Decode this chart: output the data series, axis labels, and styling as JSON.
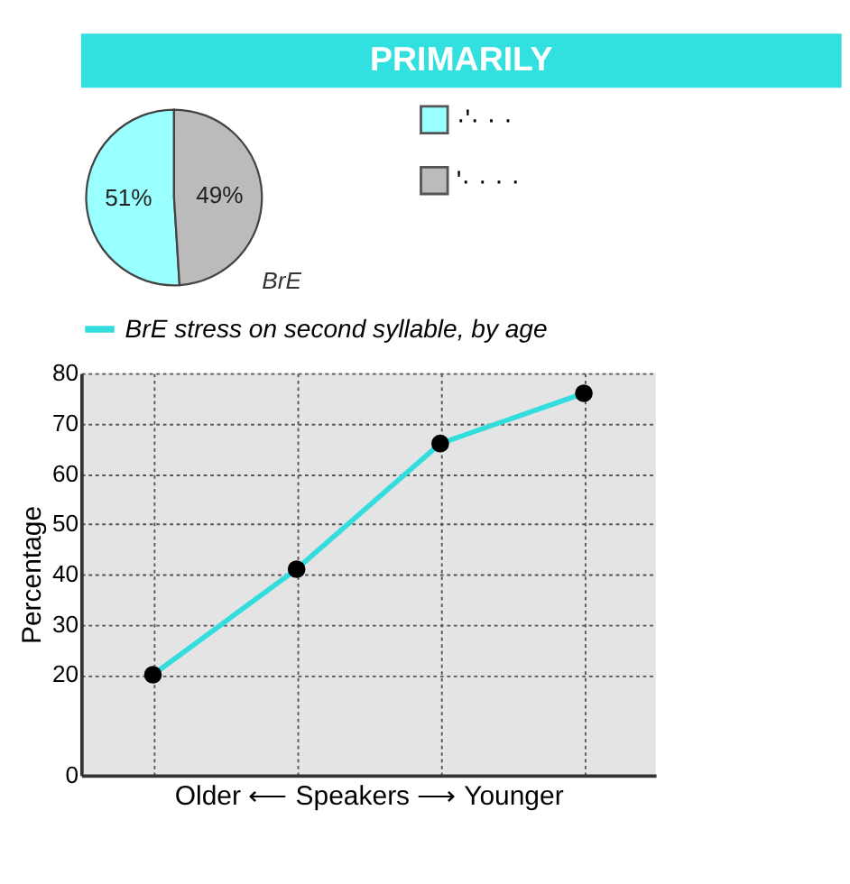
{
  "chart_data": [
    {
      "type": "pie",
      "title": "PRIMARILY",
      "categories": [
        "·'· · ·",
        "'· · · ·"
      ],
      "values": [
        51,
        49
      ],
      "colors": [
        "#99ffff",
        "#bbbbbb"
      ],
      "value_labels": [
        "51%",
        "49%"
      ],
      "annotations": [
        "BrE"
      ],
      "legend": "right"
    },
    {
      "type": "line",
      "categories": [
        null,
        null,
        null,
        null
      ],
      "ylabel": "Percentage",
      "xlabel": "Older ⟵  Speakers  ⟶ Younger",
      "ylim": [
        0,
        80
      ],
      "yticks": [
        0,
        20,
        30,
        40,
        50,
        60,
        70,
        80
      ],
      "grid": true,
      "legend": "top",
      "marker": "circle",
      "line_style": "solid",
      "series": [
        {
          "name": "BrE stress on second syllable, by age",
          "color": "#33dddd",
          "values": [
            20,
            41,
            66,
            76
          ]
        }
      ]
    }
  ]
}
